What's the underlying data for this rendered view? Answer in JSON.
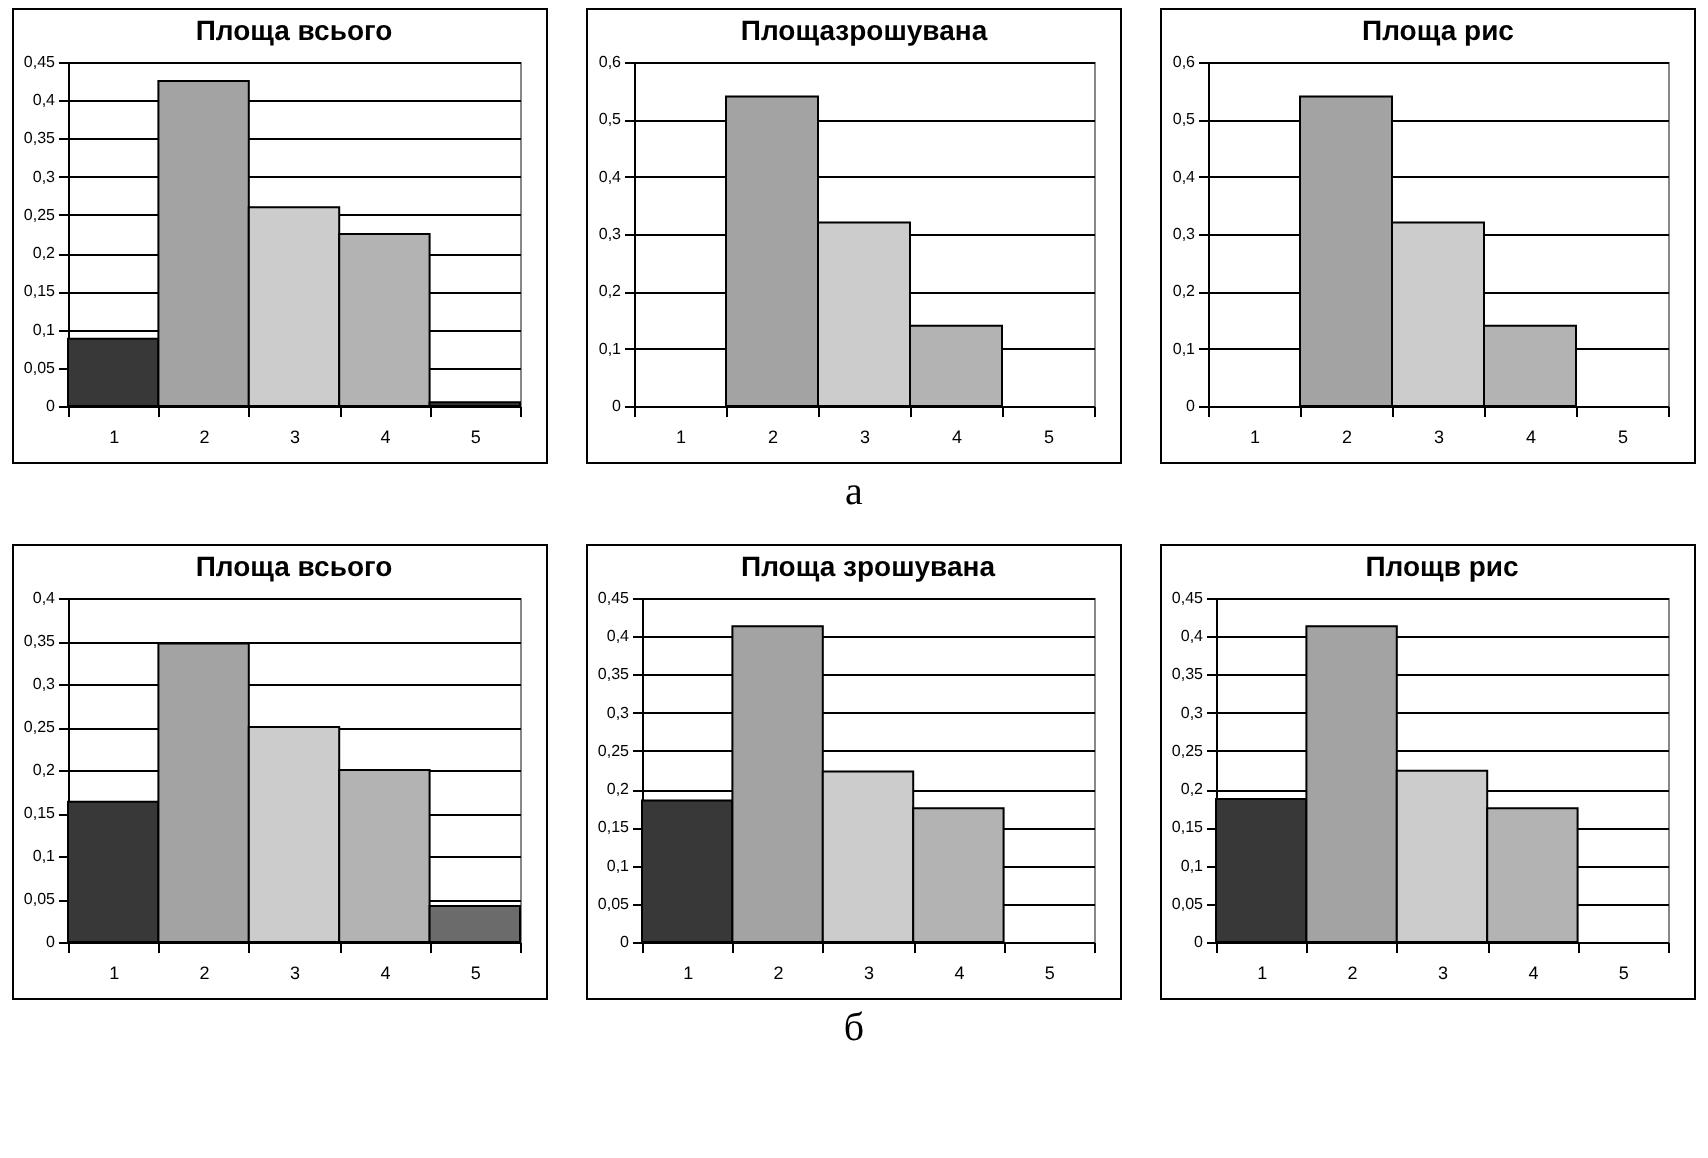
{
  "chart_data": [
    {
      "type": "bar",
      "title": "Площа всього",
      "categories": [
        "1",
        "2",
        "3",
        "4",
        "5"
      ],
      "values": [
        0.088,
        0.425,
        0.26,
        0.225,
        0.005
      ],
      "colors": [
        "#383838",
        "#a3a3a3",
        "#cccccc",
        "#b3b3b3",
        "#383838"
      ],
      "ylim": [
        0,
        0.45
      ],
      "yticks": [
        {
          "value": 0,
          "label": "0"
        },
        {
          "value": 0.05,
          "label": "0,05"
        },
        {
          "value": 0.1,
          "label": "0,1"
        },
        {
          "value": 0.15,
          "label": "0,15"
        },
        {
          "value": 0.2,
          "label": "0,2"
        },
        {
          "value": 0.25,
          "label": "0,25"
        },
        {
          "value": 0.3,
          "label": "0,3"
        },
        {
          "value": 0.35,
          "label": "0,35"
        },
        {
          "value": 0.4,
          "label": "0,4"
        },
        {
          "value": 0.45,
          "label": "0,45"
        }
      ],
      "grid": "y"
    },
    {
      "type": "bar",
      "title": "Площазрошувана",
      "categories": [
        "1",
        "2",
        "3",
        "4",
        "5"
      ],
      "values": [
        null,
        0.54,
        0.32,
        0.14,
        null
      ],
      "colors": [
        "#383838",
        "#a3a3a3",
        "#cccccc",
        "#b3b3b3",
        "#383838"
      ],
      "ylim": [
        0,
        0.6
      ],
      "yticks": [
        {
          "value": 0,
          "label": "0"
        },
        {
          "value": 0.1,
          "label": "0,1"
        },
        {
          "value": 0.2,
          "label": "0,2"
        },
        {
          "value": 0.3,
          "label": "0,3"
        },
        {
          "value": 0.4,
          "label": "0,4"
        },
        {
          "value": 0.5,
          "label": "0,5"
        },
        {
          "value": 0.6,
          "label": "0,6"
        }
      ],
      "grid": "y",
      "annotations": [
        "а"
      ]
    },
    {
      "type": "bar",
      "title": "Площа рис",
      "categories": [
        "1",
        "2",
        "3",
        "4",
        "5"
      ],
      "values": [
        null,
        0.54,
        0.32,
        0.14,
        null
      ],
      "colors": [
        "#383838",
        "#a3a3a3",
        "#cccccc",
        "#b3b3b3",
        "#383838"
      ],
      "ylim": [
        0,
        0.6
      ],
      "yticks": [
        {
          "value": 0,
          "label": "0"
        },
        {
          "value": 0.1,
          "label": "0,1"
        },
        {
          "value": 0.2,
          "label": "0,2"
        },
        {
          "value": 0.3,
          "label": "0,3"
        },
        {
          "value": 0.4,
          "label": "0,4"
        },
        {
          "value": 0.5,
          "label": "0,5"
        },
        {
          "value": 0.6,
          "label": "0,6"
        }
      ],
      "grid": "y"
    },
    {
      "type": "bar",
      "title": "Площа всього",
      "categories": [
        "1",
        "2",
        "3",
        "4",
        "5"
      ],
      "values": [
        0.163,
        0.347,
        0.25,
        0.2,
        0.042
      ],
      "colors": [
        "#383838",
        "#a3a3a3",
        "#cccccc",
        "#b3b3b3",
        "#6b6b6b"
      ],
      "ylim": [
        0,
        0.4
      ],
      "yticks": [
        {
          "value": 0,
          "label": "0"
        },
        {
          "value": 0.05,
          "label": "0,05"
        },
        {
          "value": 0.1,
          "label": "0,1"
        },
        {
          "value": 0.15,
          "label": "0,15"
        },
        {
          "value": 0.2,
          "label": "0,2"
        },
        {
          "value": 0.25,
          "label": "0,25"
        },
        {
          "value": 0.3,
          "label": "0,3"
        },
        {
          "value": 0.35,
          "label": "0,35"
        },
        {
          "value": 0.4,
          "label": "0,4"
        }
      ],
      "grid": "y"
    },
    {
      "type": "bar",
      "title": "Площа зрошувана",
      "categories": [
        "1",
        "2",
        "3",
        "4",
        "5"
      ],
      "values": [
        0.185,
        0.413,
        0.223,
        0.175,
        null
      ],
      "colors": [
        "#383838",
        "#a3a3a3",
        "#cccccc",
        "#b3b3b3",
        "#383838"
      ],
      "ylim": [
        0,
        0.45
      ],
      "yticks": [
        {
          "value": 0,
          "label": "0"
        },
        {
          "value": 0.05,
          "label": "0,05"
        },
        {
          "value": 0.1,
          "label": "0,1"
        },
        {
          "value": 0.15,
          "label": "0,15"
        },
        {
          "value": 0.2,
          "label": "0,2"
        },
        {
          "value": 0.25,
          "label": "0,25"
        },
        {
          "value": 0.3,
          "label": "0,3"
        },
        {
          "value": 0.35,
          "label": "0,35"
        },
        {
          "value": 0.4,
          "label": "0,4"
        },
        {
          "value": 0.45,
          "label": "0,45"
        }
      ],
      "grid": "y",
      "annotations": [
        "б"
      ]
    },
    {
      "type": "bar",
      "title": "Площв рис",
      "categories": [
        "1",
        "2",
        "3",
        "4",
        "5"
      ],
      "values": [
        0.187,
        0.413,
        0.224,
        0.175,
        null
      ],
      "colors": [
        "#383838",
        "#a3a3a3",
        "#cccccc",
        "#b3b3b3",
        "#383838"
      ],
      "ylim": [
        0,
        0.45
      ],
      "yticks": [
        {
          "value": 0,
          "label": "0"
        },
        {
          "value": 0.05,
          "label": "0,05"
        },
        {
          "value": 0.1,
          "label": "0,1"
        },
        {
          "value": 0.15,
          "label": "0,15"
        },
        {
          "value": 0.2,
          "label": "0,2"
        },
        {
          "value": 0.25,
          "label": "0,25"
        },
        {
          "value": 0.3,
          "label": "0,3"
        },
        {
          "value": 0.35,
          "label": "0,35"
        },
        {
          "value": 0.4,
          "label": "0,4"
        },
        {
          "value": 0.45,
          "label": "0,45"
        }
      ],
      "grid": "y"
    }
  ]
}
